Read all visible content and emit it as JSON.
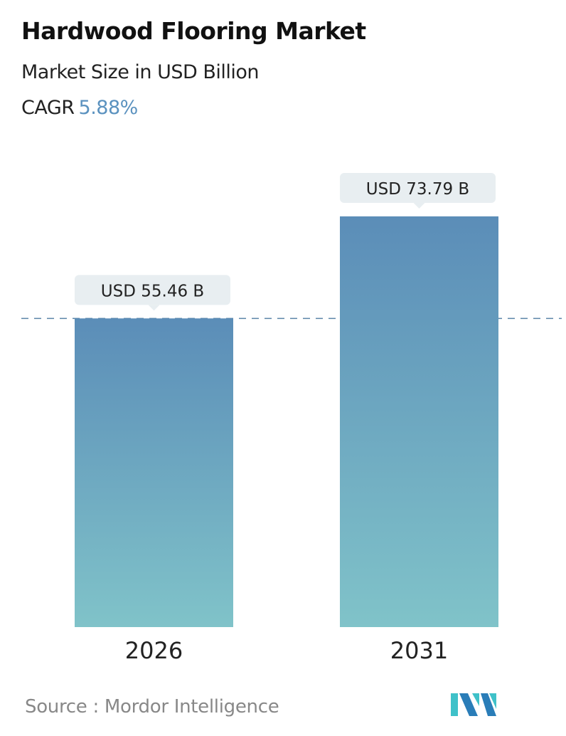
{
  "title": "Hardwood Flooring Market",
  "subtitle": "Market Size in USD Billion",
  "cagr": {
    "label": "CAGR",
    "value": "5.88%"
  },
  "source": "Source :  Mordor Intelligence",
  "colors": {
    "bar_top": "#5b8db8",
    "bar_bottom": "#80c3c9",
    "cagr_value": "#5b92bf",
    "dashed_line": "#5b84a8",
    "label_box": "#e8eef1"
  },
  "chart_data": {
    "type": "bar",
    "categories": [
      "2026",
      "2031"
    ],
    "values": [
      55.46,
      73.79
    ],
    "data_labels": [
      "USD 55.46 B",
      "USD 73.79 B"
    ],
    "title": "Hardwood Flooring Market",
    "xlabel": "",
    "ylabel": "",
    "ylim": [
      0,
      73.79
    ],
    "grid": false,
    "reference_line": {
      "style": "dashed",
      "value": 55.46
    }
  }
}
